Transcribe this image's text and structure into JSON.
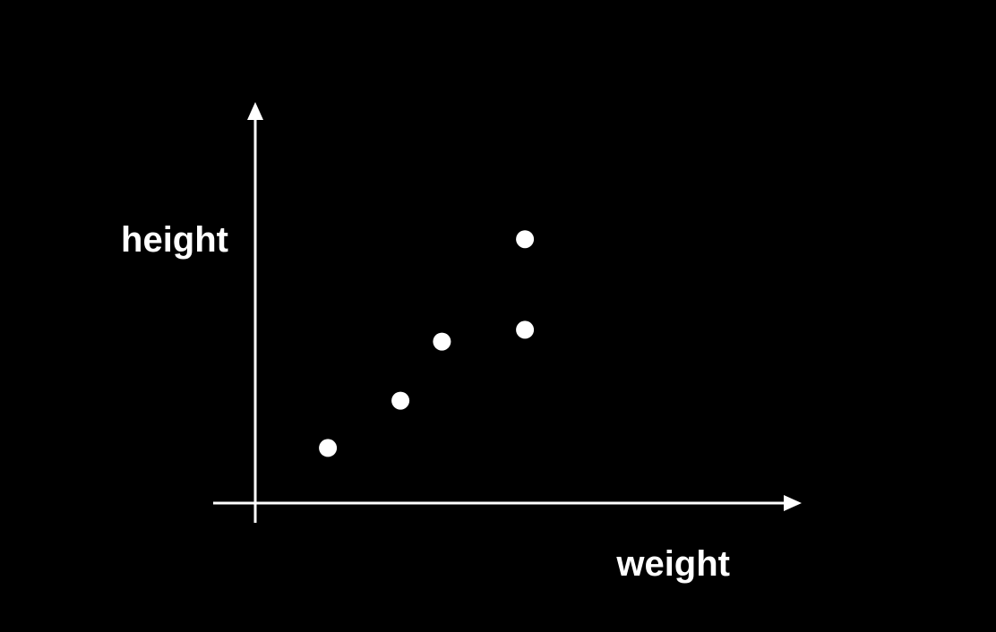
{
  "chart_data": {
    "type": "scatter",
    "title": "",
    "xlabel": "weight",
    "ylabel": "height",
    "grid": false,
    "legend": "none",
    "xlim": [
      0,
      10
    ],
    "ylim": [
      0,
      10
    ],
    "series": [
      {
        "points": [
          {
            "x": 1.4,
            "y": 1.4
          },
          {
            "x": 2.8,
            "y": 2.6
          },
          {
            "x": 3.6,
            "y": 4.1
          },
          {
            "x": 5.2,
            "y": 4.4
          },
          {
            "x": 5.2,
            "y": 6.7
          }
        ]
      }
    ]
  },
  "colors": {
    "background": "#000000",
    "foreground": "#ffffff"
  }
}
